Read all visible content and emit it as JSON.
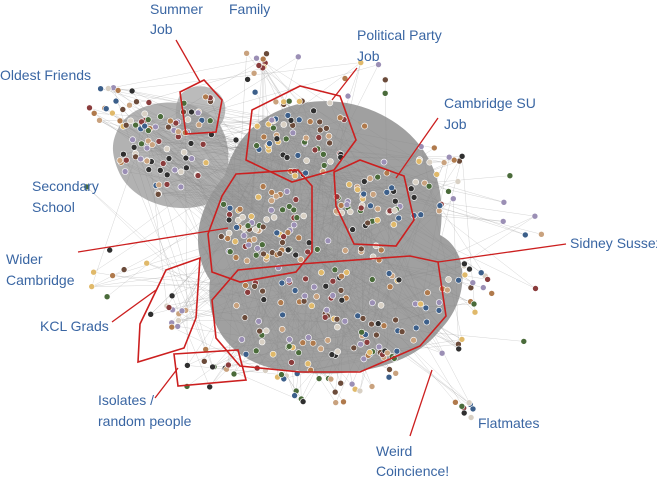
{
  "colors": {
    "label": "#3a66a3",
    "boundary": "#cc1f1f",
    "edge": "#8a8a8a",
    "node_border": "#5b5b5b"
  },
  "labels": {
    "summer_job_1": "Summer",
    "summer_job_2": "Job",
    "family": "Family",
    "political_party_1": "Political Party",
    "political_party_2": "Job",
    "oldest_friends": "Oldest Friends",
    "cambridge_su_1": "Cambridge SU",
    "cambridge_su_2": "Job",
    "secondary_school_1": "Secondary",
    "secondary_school_2": "School",
    "wider_cambridge_1": "Wider",
    "wider_cambridge_2": "Cambridge",
    "sidney_sussex": "Sidney Sussex",
    "kcl_grads": "KCL Grads",
    "isolates_1": "Isolates /",
    "isolates_2": "random people",
    "weird_coincidence_1": "Weird",
    "weird_coincidence_2": "Coincience!",
    "flatmates": "Flatmates"
  }
}
